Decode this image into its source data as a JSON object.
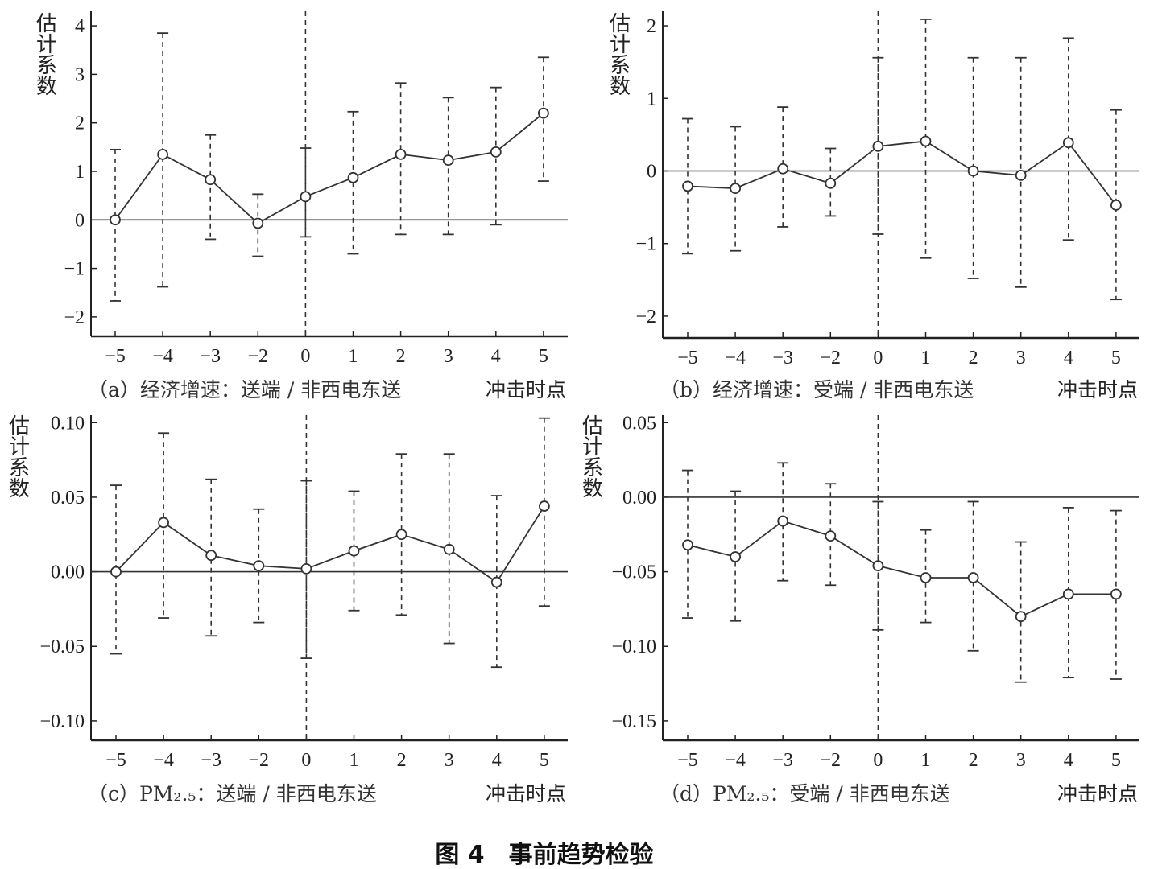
{
  "figure": {
    "title": "图 4　事前趋势检验"
  },
  "chart_data": [
    {
      "type": "line",
      "panel": "a",
      "caption": "（a）经济增速：送端 / 非西电东送",
      "xlabel": "冲击时点",
      "ylabel": "估计系数",
      "categories": [
        "−5",
        "−4",
        "−3",
        "−2",
        "0",
        "1",
        "2",
        "3",
        "4",
        "5"
      ],
      "values": [
        0.0,
        1.35,
        0.83,
        -0.07,
        0.48,
        0.87,
        1.35,
        1.23,
        1.4,
        2.2
      ],
      "ci_upper": [
        1.45,
        3.85,
        1.75,
        0.53,
        1.48,
        2.23,
        2.82,
        2.52,
        2.73,
        3.35
      ],
      "ci_lower": [
        -1.67,
        -1.38,
        -0.4,
        -0.75,
        -0.35,
        -0.7,
        -0.3,
        -0.3,
        -0.1,
        0.8
      ],
      "ylim": [
        -2.4,
        4.3
      ],
      "yticks": [
        -2,
        -1,
        0,
        1,
        2,
        3,
        4
      ],
      "ytick_labels": [
        "−2",
        "−1",
        "0",
        "1",
        "2",
        "3",
        "4"
      ],
      "reference_line": 0,
      "event_line_category": "0"
    },
    {
      "type": "line",
      "panel": "b",
      "caption": "（b）经济增速：受端 / 非西电东送",
      "xlabel": "冲击时点",
      "ylabel": "估计系数",
      "categories": [
        "−5",
        "−4",
        "−3",
        "−2",
        "0",
        "1",
        "2",
        "3",
        "4",
        "5"
      ],
      "values": [
        -0.21,
        -0.24,
        0.03,
        -0.17,
        0.34,
        0.41,
        0.0,
        -0.06,
        0.39,
        -0.47
      ],
      "ci_upper": [
        0.72,
        0.61,
        0.88,
        0.31,
        1.56,
        2.09,
        1.56,
        1.56,
        1.83,
        0.84
      ],
      "ci_lower": [
        -1.14,
        -1.1,
        -0.77,
        -0.62,
        -0.87,
        -1.2,
        -1.48,
        -1.6,
        -0.95,
        -1.77
      ],
      "ylim": [
        -2.3,
        2.2
      ],
      "yticks": [
        -2,
        -1,
        0,
        1,
        2
      ],
      "ytick_labels": [
        "−2",
        "−1",
        "0",
        "1",
        "2"
      ],
      "reference_line": 0,
      "event_line_category": "0"
    },
    {
      "type": "line",
      "panel": "c",
      "caption": "（c）PM₂.₅：送端 / 非西电东送",
      "xlabel": "冲击时点",
      "ylabel": "估计系数",
      "categories": [
        "−5",
        "−4",
        "−3",
        "−2",
        "0",
        "1",
        "2",
        "3",
        "4",
        "5"
      ],
      "values": [
        0.0,
        0.033,
        0.011,
        0.004,
        0.002,
        0.014,
        0.025,
        0.015,
        -0.007,
        0.044
      ],
      "ci_upper": [
        0.058,
        0.093,
        0.062,
        0.042,
        0.061,
        0.054,
        0.079,
        0.079,
        0.051,
        0.103
      ],
      "ci_lower": [
        -0.055,
        -0.031,
        -0.043,
        -0.034,
        -0.058,
        -0.026,
        -0.029,
        -0.048,
        -0.064,
        -0.023
      ],
      "ylim": [
        -0.113,
        0.105
      ],
      "yticks": [
        -0.1,
        -0.05,
        0.0,
        0.05,
        0.1
      ],
      "ytick_labels": [
        "−0.10",
        "−0.05",
        "0.00",
        "0.05",
        "0.10"
      ],
      "reference_line": 0,
      "event_line_category": "0"
    },
    {
      "type": "line",
      "panel": "d",
      "caption": "（d）PM₂.₅：受端 / 非西电东送",
      "xlabel": "冲击时点",
      "ylabel": "估计系数",
      "categories": [
        "−5",
        "−4",
        "−3",
        "−2",
        "0",
        "1",
        "2",
        "3",
        "4",
        "5"
      ],
      "values": [
        -0.032,
        -0.04,
        -0.016,
        -0.026,
        -0.046,
        -0.054,
        -0.054,
        -0.08,
        -0.065,
        -0.065
      ],
      "ci_upper": [
        0.018,
        0.004,
        0.023,
        0.009,
        -0.003,
        -0.022,
        -0.003,
        -0.03,
        -0.007,
        -0.009
      ],
      "ci_lower": [
        -0.081,
        -0.083,
        -0.056,
        -0.059,
        -0.089,
        -0.084,
        -0.103,
        -0.124,
        -0.121,
        -0.122
      ],
      "ylim": [
        -0.163,
        0.055
      ],
      "yticks": [
        -0.15,
        -0.1,
        -0.05,
        0.0,
        0.05
      ],
      "ytick_labels": [
        "−0.15",
        "−0.10",
        "−0.05",
        "0.00",
        "0.05"
      ],
      "reference_line": 0,
      "event_line_category": "0"
    }
  ]
}
